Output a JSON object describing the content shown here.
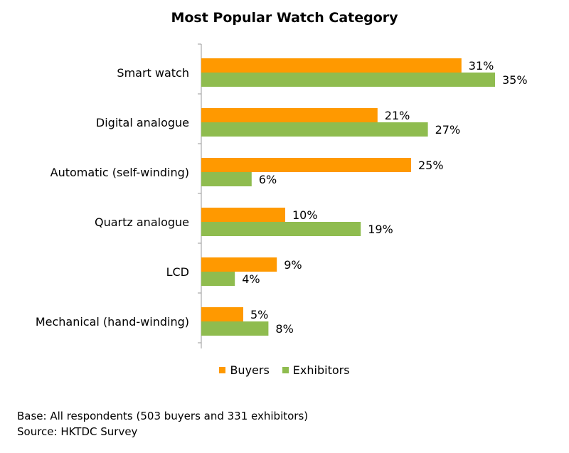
{
  "chart_data": {
    "type": "bar",
    "orientation": "horizontal",
    "title": "Most Popular Watch Category",
    "categories": [
      "Smart watch",
      "Digital analogue",
      "Automatic (self-winding)",
      "Quartz analogue",
      "LCD",
      "Mechanical (hand-winding)"
    ],
    "series": [
      {
        "name": "Buyers",
        "color": "#FF9900",
        "values": [
          31,
          21,
          25,
          10,
          9,
          5
        ]
      },
      {
        "name": "Exhibitors",
        "color": "#8FBC4F",
        "values": [
          35,
          27,
          6,
          19,
          4,
          8
        ]
      }
    ],
    "value_suffix": "%",
    "xlim": [
      0,
      40
    ],
    "grid": false,
    "legend_position": "bottom"
  },
  "footnotes": {
    "base": "Base: All respondents (503 buyers and 331 exhibitors)",
    "source": "Source: HKTDC Survey"
  }
}
